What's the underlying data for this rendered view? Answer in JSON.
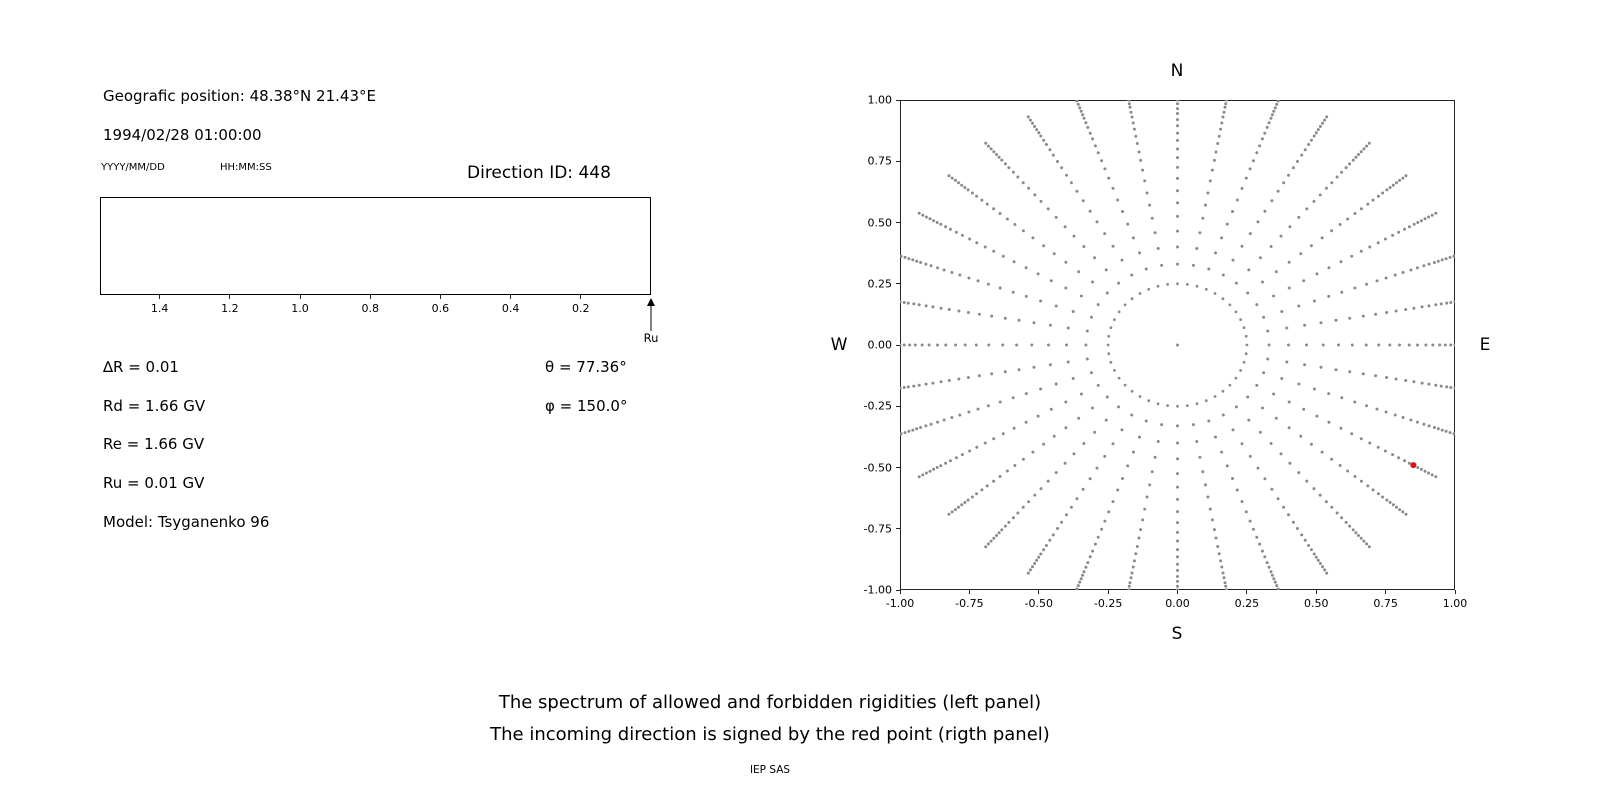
{
  "header": {
    "position": "Geografic position: 48.38°N 21.43°E",
    "datetime": "1994/02/28 01:00:00",
    "date_format_hint": "YYYY/MM/DD",
    "time_format_hint": "HH:MM:SS",
    "direction_id": "Direction ID: 448"
  },
  "params": {
    "delta_r": "∆R = 0.01",
    "rd": "Rd = 1.66 GV",
    "re": "Re = 1.66 GV",
    "ru": "Ru = 0.01 GV",
    "model": "Model: Tsyganenko 96",
    "theta": "θ = 77.36°",
    "phi": "φ = 150.0°"
  },
  "caption": {
    "line1": "The spectrum of allowed and forbidden rigidities (left panel)",
    "line2": "The incoming direction is signed by the red point (rigth panel)",
    "credit": "IEP SAS"
  },
  "chart_data": [
    {
      "name": "rigidity-spectrum",
      "type": "line",
      "title": "",
      "xlabel_arrow": "Ru",
      "x_ticks": [
        1.4,
        1.2,
        1.0,
        0.8,
        0.6,
        0.4,
        0.2
      ],
      "xlim": [
        1.57,
        0.0
      ],
      "axis_inverted": true,
      "series": [],
      "note": "Empty band plot: lower and upper cutoffs coincide (Rd = Re = 1.66 GV); up-arrow marks Ru = 0.01 GV at the right edge of the axis"
    },
    {
      "name": "incoming-direction-map",
      "type": "scatter",
      "xlim": [
        -1,
        1
      ],
      "ylim": [
        -1,
        1
      ],
      "x_tick_labels": [
        "-1.00",
        "-0.75",
        "-0.50",
        "-0.25",
        "0.00",
        "0.25",
        "0.50",
        "0.75",
        "1.00"
      ],
      "y_tick_labels": [
        "1.00",
        "0.75",
        "0.50",
        "0.25",
        "0.00",
        "-0.25",
        "-0.50",
        "-0.75",
        "-1.00"
      ],
      "compass": {
        "top": "N",
        "bottom": "S",
        "left": "W",
        "right": "E"
      },
      "dot_color": "#8a8a8a",
      "frame_color": "#262626",
      "pattern": {
        "spokes": {
          "count": 36,
          "angle_start_deg": 0,
          "angle_step_deg": 10,
          "radii": [
            0.33,
            0.4,
            0.465,
            0.525,
            0.58,
            0.63,
            0.68,
            0.725,
            0.765,
            0.8,
            0.835,
            0.865,
            0.895,
            0.92,
            0.945,
            0.965,
            0.985,
            1.0,
            1.015,
            1.03,
            1.045,
            1.06,
            1.075
          ]
        },
        "inner_ring": {
          "radius": 0.25,
          "n_points": 44
        },
        "center_point": [
          0,
          0
        ]
      },
      "red_point": {
        "x": 0.85,
        "y": -0.49,
        "color": "#dd1111",
        "label": "incoming direction"
      }
    }
  ]
}
